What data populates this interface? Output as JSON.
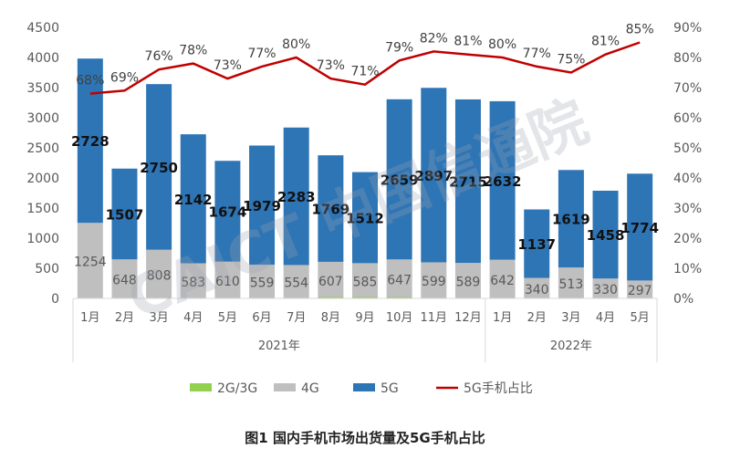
{
  "chart_data": {
    "type": "bar",
    "title": "",
    "categories": [
      "1月",
      "2月",
      "3月",
      "4月",
      "5月",
      "6月",
      "7月",
      "8月",
      "9月",
      "10月",
      "11月",
      "12月",
      "1月",
      "2月",
      "3月",
      "4月",
      "5月"
    ],
    "groups": [
      {
        "label": "2021年",
        "count": 12
      },
      {
        "label": "2022年",
        "count": 5
      }
    ],
    "series": [
      {
        "name": "2G/3G",
        "type": "bar",
        "color": "#92d050",
        "values": [
          0,
          0,
          0,
          0,
          0,
          0,
          0,
          20,
          20,
          20,
          0,
          0,
          0,
          0,
          0,
          0,
          0
        ]
      },
      {
        "name": "4G",
        "type": "bar",
        "color": "#bfbfbf",
        "values": [
          1254,
          648,
          808,
          583,
          610,
          559,
          554,
          607,
          585,
          647,
          599,
          589,
          642,
          340,
          513,
          330,
          297
        ],
        "labels": [
          "1254",
          "648",
          "808",
          "583",
          "610",
          "559",
          "554",
          "607",
          "585",
          "647",
          "599",
          "589",
          "642",
          "340",
          "513",
          "330",
          "297"
        ]
      },
      {
        "name": "5G",
        "type": "bar",
        "color": "#2e75b6",
        "values": [
          2728,
          1507,
          2750,
          2142,
          1674,
          1979,
          2283,
          1769,
          1512,
          2659,
          2897,
          2715,
          2632,
          1137,
          1619,
          1458,
          1774
        ],
        "labels": [
          "2728",
          "1507",
          "2750",
          "2142",
          "1674",
          "1979",
          "2283",
          "1769",
          "1512",
          "2659",
          "2897",
          "2715",
          "2632",
          "1137",
          "1619",
          "1458",
          "1774"
        ]
      },
      {
        "name": "5G手机占比",
        "type": "line",
        "color": "#c00000",
        "axis": "right",
        "values": [
          68,
          69,
          76,
          78,
          73,
          77,
          80,
          73,
          71,
          79,
          82,
          81,
          80,
          77,
          75,
          81,
          85
        ],
        "labels": [
          "68%",
          "69%",
          "76%",
          "78%",
          "73%",
          "77%",
          "80%",
          "73%",
          "71%",
          "79%",
          "82%",
          "81%",
          "80%",
          "77%",
          "75%",
          "81%",
          "85%"
        ]
      }
    ],
    "y_left": {
      "min": 0,
      "max": 4500,
      "step": 500,
      "ticks": [
        "0",
        "500",
        "1000",
        "1500",
        "2000",
        "2500",
        "3000",
        "3500",
        "4000",
        "4500"
      ]
    },
    "y_right": {
      "min": 0,
      "max": 90,
      "step": 10,
      "ticks": [
        "0%",
        "10%",
        "20%",
        "30%",
        "40%",
        "50%",
        "60%",
        "70%",
        "80%",
        "90%"
      ]
    },
    "legend": {
      "position": "bottom",
      "items": [
        "2G/3G",
        "4G",
        "5G",
        "5G手机占比"
      ]
    },
    "grid": false
  },
  "watermark": "CAICT 中国信通院",
  "caption": "图1  国内手机市场出货量及5G手机占比"
}
